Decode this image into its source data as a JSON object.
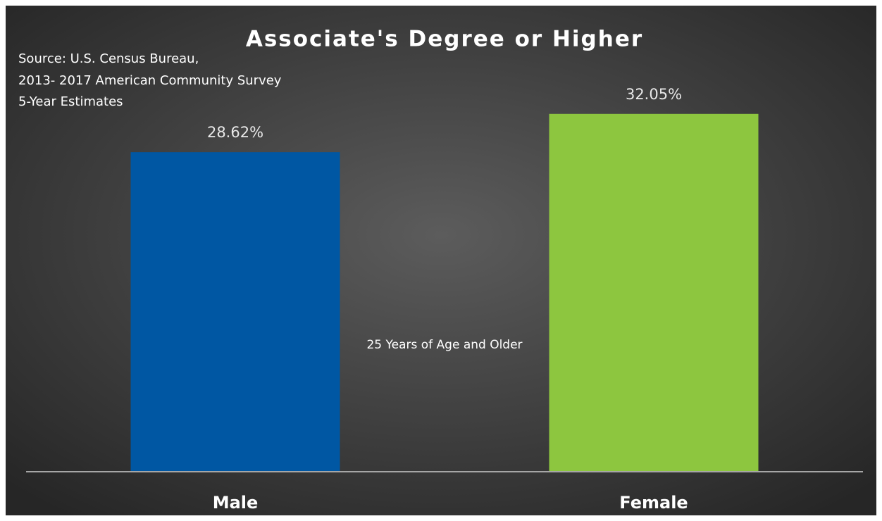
{
  "chart_data": {
    "type": "bar",
    "title": "Associate's Degree or Higher",
    "annotations": [
      "Source: U.S. Census Bureau,",
      "2013- 2017 American Community Survey",
      "5-Year Estimates",
      "25 Years of Age and Older"
    ],
    "categories": [
      "Male",
      "Female"
    ],
    "values": [
      28.62,
      32.05
    ],
    "value_labels": [
      "28.62%",
      "32.05%"
    ],
    "colors": [
      "#0057a3",
      "#8dc63f"
    ],
    "ylim": [
      0,
      35
    ]
  }
}
